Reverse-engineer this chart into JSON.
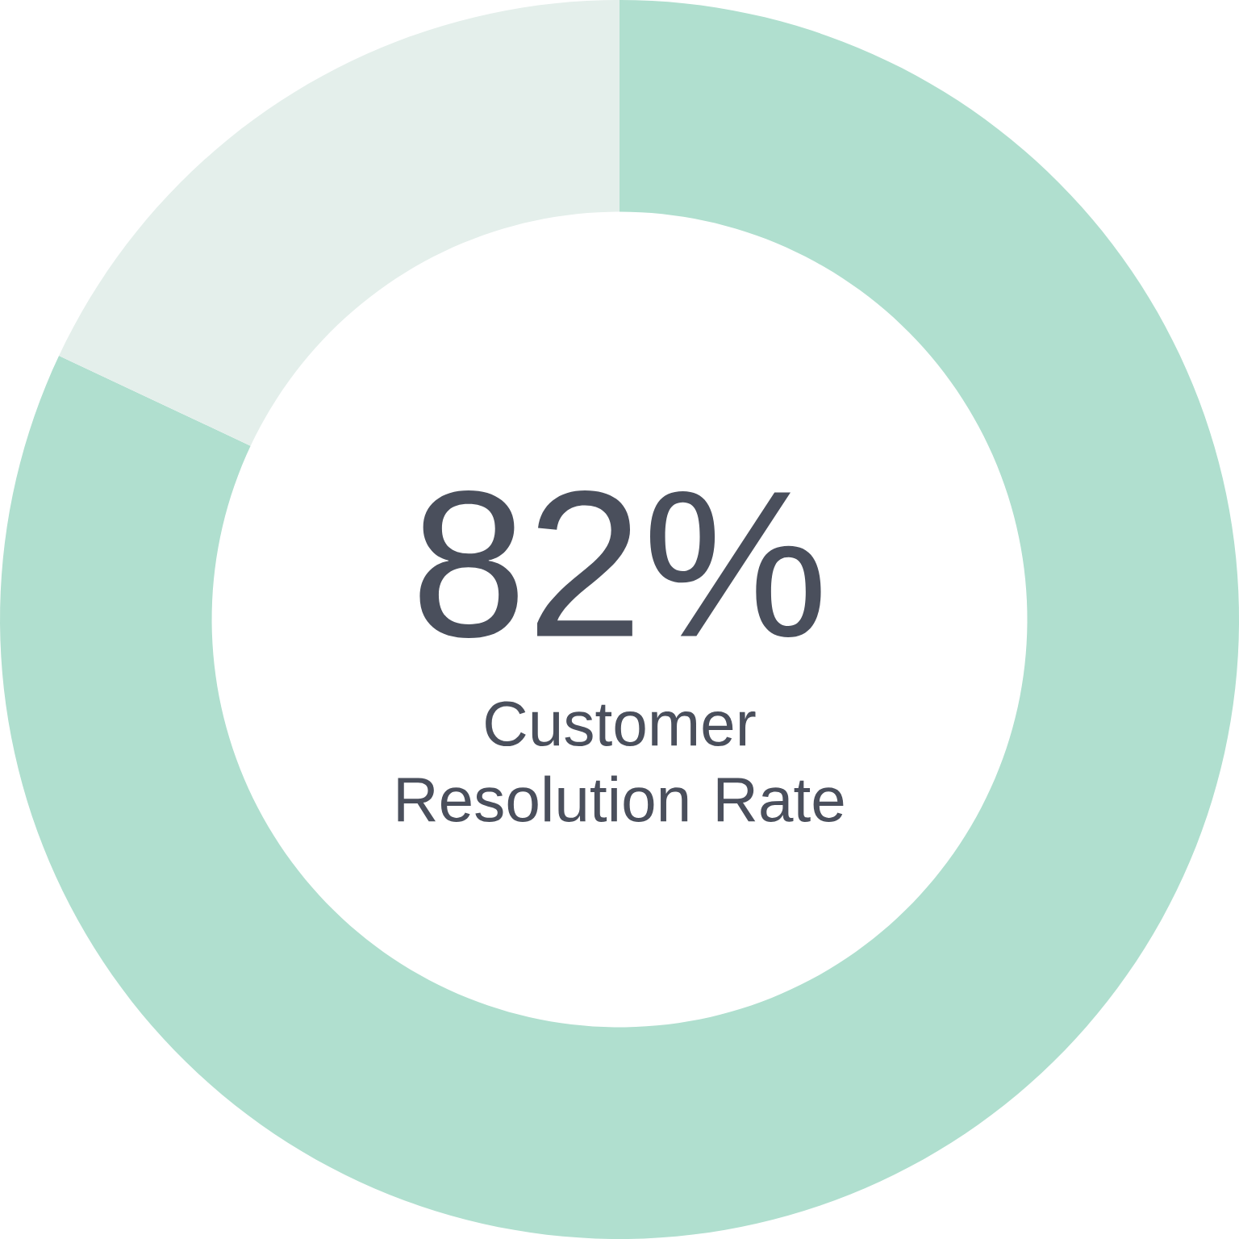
{
  "chart_data": {
    "type": "donut",
    "categories": [
      null,
      null
    ],
    "values": [
      82,
      18
    ],
    "colors": [
      "#b0dfcf",
      "#e4efeb"
    ],
    "value_labels": [
      "82%",
      null
    ],
    "annotations": [
      "Customer Resolution Rate"
    ]
  }
}
